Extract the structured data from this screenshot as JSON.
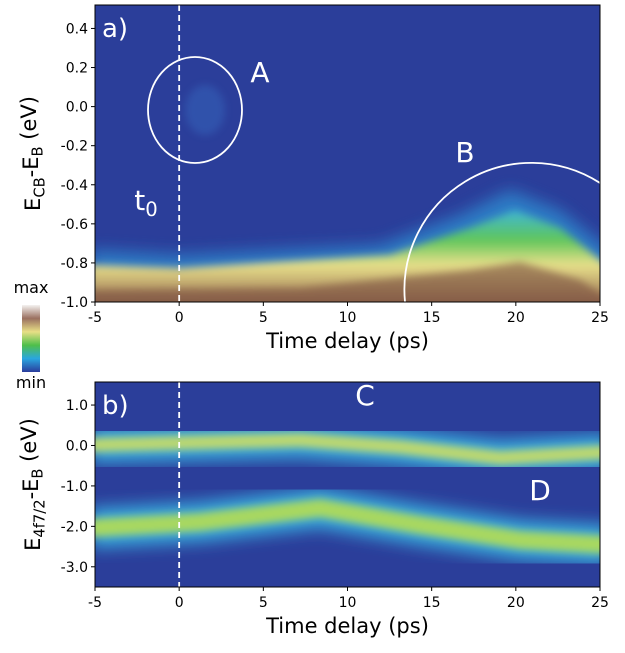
{
  "chart_data": [
    {
      "type": "heatmap",
      "panel_label": "a)",
      "xlabel": "Time delay (ps)",
      "ylabel": [
        {
          "text": "E"
        },
        {
          "text": "CB",
          "sub": true
        },
        {
          "text": "-E"
        },
        {
          "text": "B",
          "sub": true
        },
        {
          "text": " (eV)"
        }
      ],
      "xlim": [
        -5,
        25
      ],
      "xticks": [
        -5,
        0,
        5,
        10,
        15,
        20,
        25
      ],
      "ylim": [
        -1,
        0.52
      ],
      "yticks": [
        {
          "value": -1,
          "label": "-1.0"
        },
        -0.8,
        -0.6,
        -0.4,
        -0.2,
        {
          "value": 0,
          "label": "0.0"
        },
        0.2,
        0.4
      ],
      "vline": 0,
      "annotations": [
        [
          {
            "text": "A"
          }
        ],
        [
          {
            "text": "B"
          }
        ],
        [
          {
            "text": "t"
          },
          {
            "text": "0",
            "sub": true
          }
        ]
      ],
      "colorbar": {
        "max_label": "max",
        "min_label": "min"
      }
    },
    {
      "type": "heatmap",
      "panel_label": "b)",
      "xlabel": "Time delay (ps)",
      "ylabel": [
        {
          "text": "E"
        },
        {
          "text": "4f7/2",
          "sub": true
        },
        {
          "text": "-E"
        },
        {
          "text": "B",
          "sub": true
        },
        {
          "text": " (eV)"
        }
      ],
      "xlim": [
        -5,
        25
      ],
      "xticks": [
        -5,
        0,
        5,
        10,
        15,
        20,
        25
      ],
      "ylim": [
        -3.5,
        1.57
      ],
      "yticks": [
        {
          "value": 1,
          "label": "1.0"
        },
        {
          "value": 0,
          "label": "0.0"
        },
        {
          "value": -1,
          "label": "-1.0"
        },
        {
          "value": -2,
          "label": "-2.0"
        },
        {
          "value": -3,
          "label": "-3.0"
        }
      ],
      "vline": 0,
      "annotations": [
        [
          {
            "text": "C"
          }
        ],
        [
          {
            "text": "D"
          }
        ]
      ]
    }
  ]
}
